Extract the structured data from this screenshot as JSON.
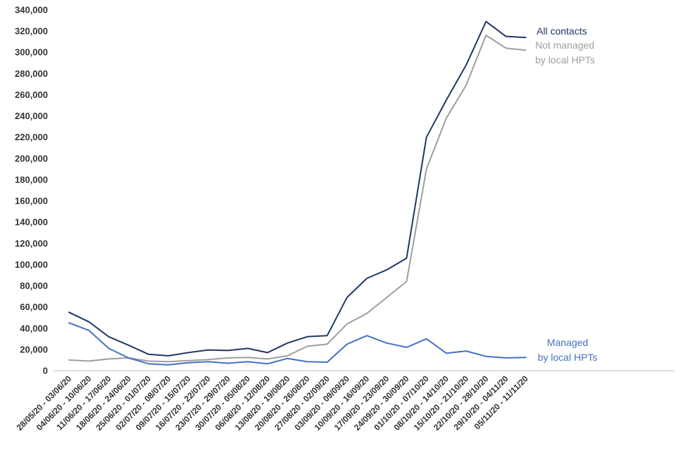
{
  "chart_data": {
    "type": "line",
    "title": "",
    "xlabel": "",
    "ylabel": "",
    "ylim": [
      0,
      340000
    ],
    "yticks": [
      0,
      20000,
      40000,
      60000,
      80000,
      100000,
      120000,
      140000,
      160000,
      180000,
      200000,
      220000,
      240000,
      260000,
      280000,
      300000,
      320000,
      340000
    ],
    "ytick_labels": [
      "0",
      "20,000",
      "40,000",
      "60,000",
      "80,000",
      "100,000",
      "120,000",
      "140,000",
      "160,000",
      "180,000",
      "200,000",
      "220,000",
      "240,000",
      "260,000",
      "280,000",
      "300,000",
      "320,000",
      "340,000"
    ],
    "grid": false,
    "legend": "direct labels at line ends",
    "categories": [
      "28/05/20 - 03/06/20",
      "04/06/20 - 10/06/20",
      "11/06/20 - 17/06/20",
      "18/06/20 - 24/06/20",
      "25/06/20 - 01/07/20",
      "02/07/20 - 08/07/20",
      "09/07/20 - 15/07/20",
      "16/07/20 - 22/07/20",
      "23/07/20 - 29/07/20",
      "30/07/20 - 05/08/20",
      "06/08/20 - 12/08/20",
      "13/08/20 - 19/08/20",
      "20/08/20 - 26/08/20",
      "27/08/20 - 02/09/20",
      "03/09/20 - 09/09/20",
      "10/09/20 - 16/09/20",
      "17/09/20 - 23/09/20",
      "24/09/20 - 30/09/20",
      "01/10/20 - 07/10/20",
      "08/10/20 - 14/10/20",
      "15/10/20 - 21/10/20",
      "22/10/20 - 28/10/20",
      "29/10/20 - 04/11/20",
      "05/11/20 - 11/11/20"
    ],
    "series": [
      {
        "key": "all",
        "label_lines": [
          "All contacts"
        ],
        "color": "#1f3864",
        "values": [
          55000,
          46000,
          32000,
          24000,
          15500,
          14000,
          17000,
          19500,
          19000,
          21000,
          17000,
          26000,
          32000,
          33000,
          69000,
          87000,
          95000,
          106000,
          220000,
          255000,
          288000,
          329000,
          315000,
          314000
        ]
      },
      {
        "key": "not_managed",
        "label_lines": [
          "Not managed",
          "by local HPTs"
        ],
        "color": "#9e9e9e",
        "values": [
          10000,
          9000,
          11000,
          12000,
          9000,
          8500,
          9500,
          10500,
          12000,
          12500,
          11000,
          14000,
          23000,
          25000,
          44000,
          54000,
          69000,
          84000,
          190000,
          238000,
          269000,
          316000,
          304000,
          302000
        ]
      },
      {
        "key": "managed",
        "label_lines": [
          "Managed",
          "by local HPTs"
        ],
        "color": "#4472c4",
        "values": [
          45000,
          38000,
          21000,
          12000,
          6500,
          5500,
          7500,
          8500,
          7000,
          8500,
          6500,
          11500,
          8500,
          8000,
          25000,
          33000,
          26000,
          22000,
          30000,
          16500,
          18500,
          13500,
          12000,
          12500
        ]
      }
    ]
  }
}
